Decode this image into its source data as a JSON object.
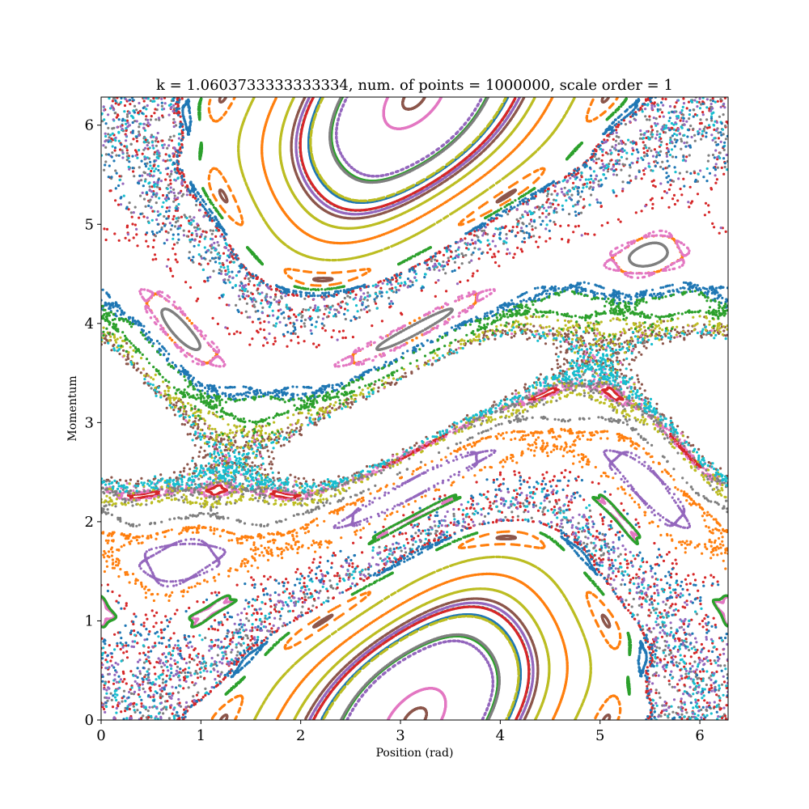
{
  "chart_data": {
    "type": "scatter",
    "title": "k = 1.0603733333333334, num. of  points = 1000000, scale order = 1",
    "xlabel": "Position (rad)",
    "ylabel": "Momentum",
    "xlim": [
      0,
      6.283185307
    ],
    "ylim": [
      0,
      6.283185307
    ],
    "xticks": [
      0,
      1,
      2,
      3,
      4,
      5,
      6
    ],
    "yticks": [
      0,
      1,
      2,
      3,
      4,
      5,
      6
    ],
    "grid": false,
    "k": 1.0603733333333334,
    "num_points": 1000000,
    "scale_order": 1,
    "colors": [
      "#1f77b4",
      "#ff7f0e",
      "#2ca02c",
      "#d62728",
      "#9467bd",
      "#8c564b",
      "#e377c2",
      "#7f7f7f",
      "#bcbd22",
      "#17becf"
    ]
  }
}
